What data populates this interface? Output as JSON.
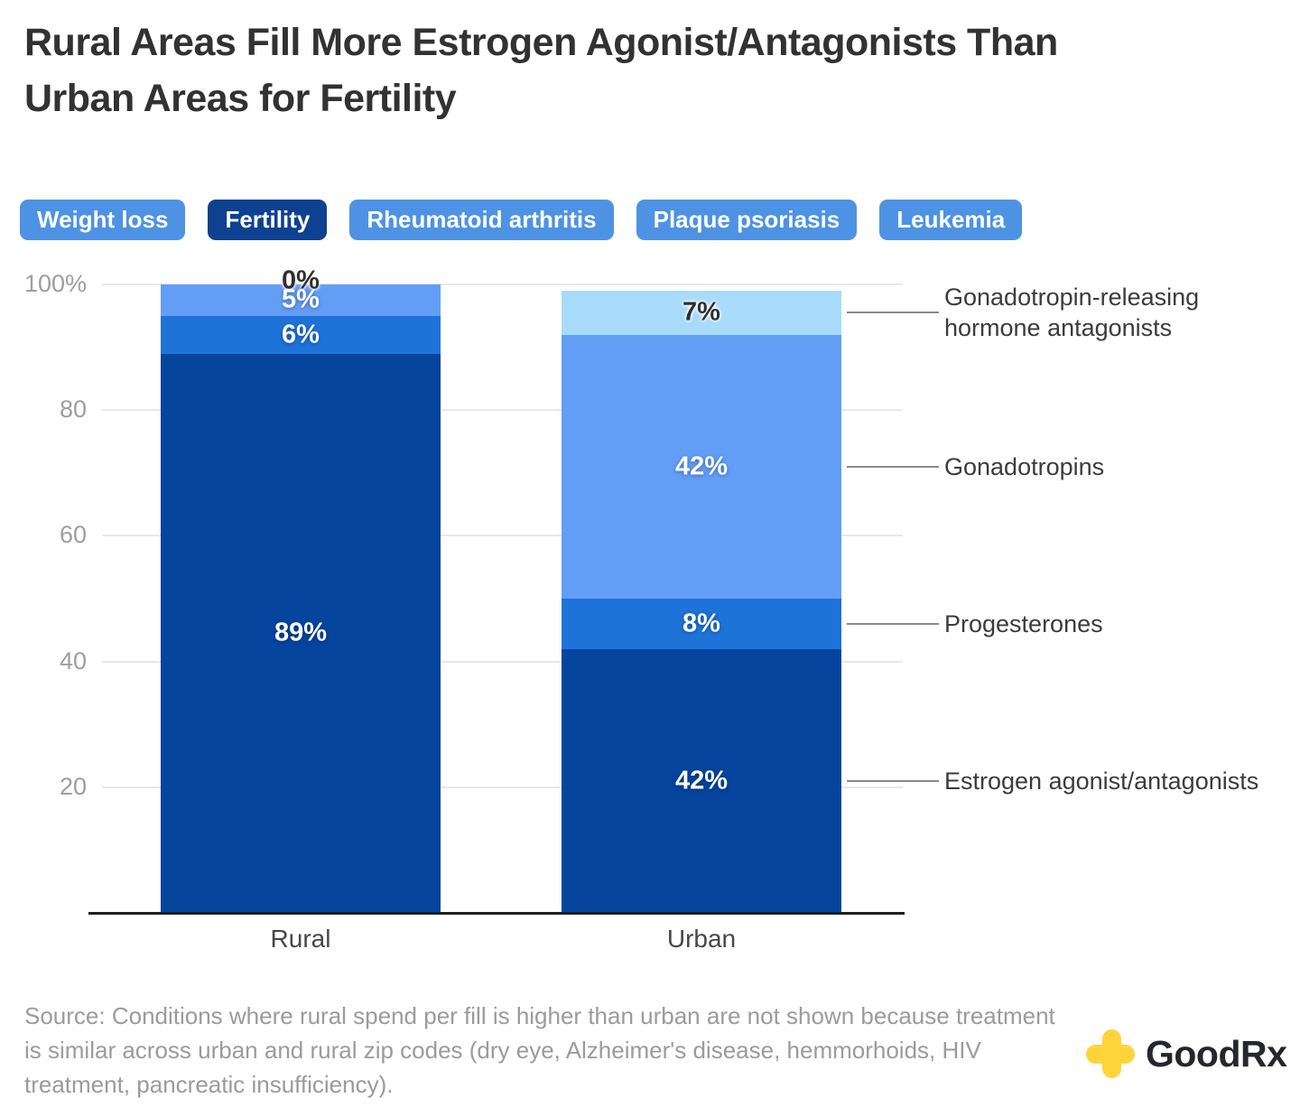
{
  "title": {
    "line1": "Rural Areas Fill More Estrogen Agonist/Antagonists Than",
    "line2": "Urban Areas for Fertility"
  },
  "tabs": [
    {
      "label": "Weight loss",
      "active": false
    },
    {
      "label": "Fertility",
      "active": true
    },
    {
      "label": "Rheumatoid arthritis",
      "active": false
    },
    {
      "label": "Plaque psoriasis",
      "active": false
    },
    {
      "label": "Leukemia",
      "active": false
    }
  ],
  "tab_colors": {
    "inactive_bg": "#4e92e3",
    "active_bg": "#0e4190",
    "text": "#ffffff"
  },
  "chart_data": {
    "type": "stacked-bar",
    "categories": [
      "Rural",
      "Urban"
    ],
    "series": [
      {
        "name": "Estrogen agonist/antagonists",
        "color": "#05459e",
        "label_color": "white",
        "values": [
          89,
          42
        ]
      },
      {
        "name": "Progesterones",
        "color": "#1e73d8",
        "label_color": "white",
        "values": [
          6,
          8
        ]
      },
      {
        "name": "Gonadotropins",
        "color": "#639ef6",
        "label_color": "white",
        "values": [
          5,
          42
        ]
      },
      {
        "name": "Gonadotropin-releasing\nhormone antagonists",
        "color": "#a8dbfa",
        "label_color": "dark",
        "values": [
          0,
          7
        ]
      }
    ],
    "ylim": [
      0,
      100
    ],
    "yticks": [
      {
        "value": 100,
        "label": "100%"
      },
      {
        "value": 80,
        "label": "80"
      },
      {
        "value": 60,
        "label": "60"
      },
      {
        "value": 40,
        "label": "40"
      },
      {
        "value": 20,
        "label": "20"
      }
    ],
    "grid": true,
    "legend_position": "right",
    "value_suffix": "%"
  },
  "source": {
    "text": "Source: Conditions where rural spend per fill is higher than urban are not shown because treatment is similar across urban and rural zip codes (dry eye, Alzheimer's disease, hemmorhoids, HIV treatment, pancreatic insufficiency)."
  },
  "logo": {
    "text": "GoodRx",
    "plus_color": "#ffd43b",
    "text_color": "#26272e"
  }
}
